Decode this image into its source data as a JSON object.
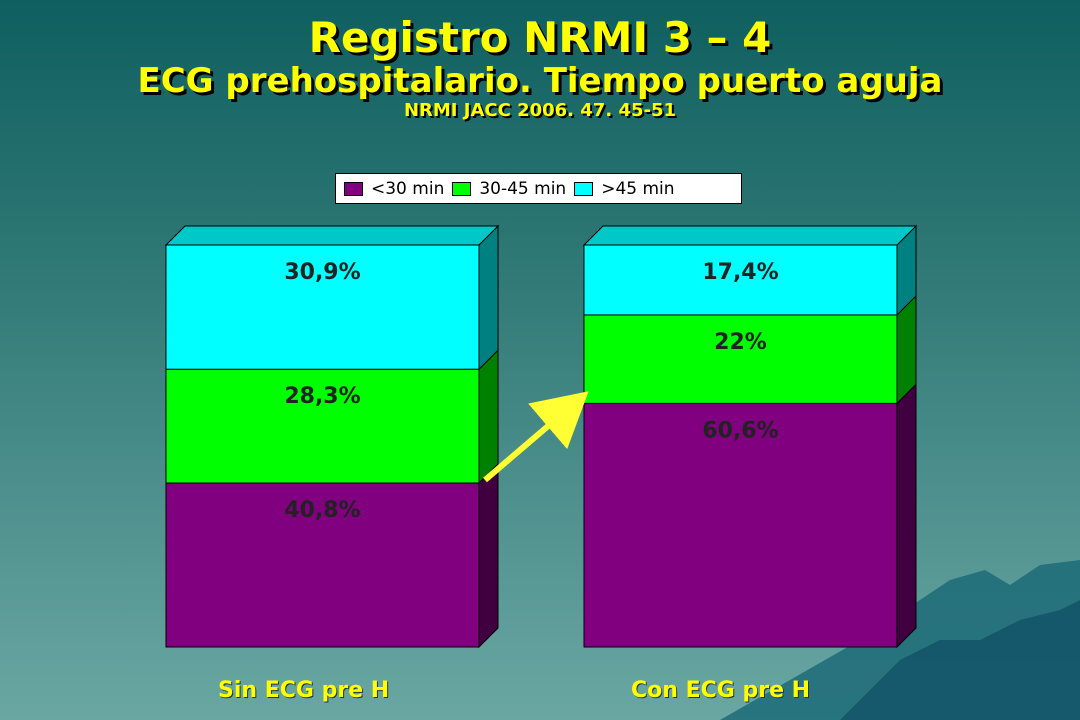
{
  "title": "Registro NRMI 3 – 4",
  "subtitle": "ECG prehospitalario. Tiempo puerto aguja",
  "source": "NRMI JACC 2006. 47. 45-51",
  "colors": {
    "lt30": "#800080",
    "lt30_side": "#400040",
    "mid": "#00ff00",
    "mid_side": "#008000",
    "gt45": "#00ffff",
    "gt45_side": "#008080",
    "label": "#ffff00",
    "arrow": "#ffff33"
  },
  "chart_data": {
    "type": "bar",
    "stacked": true,
    "three_d": true,
    "categories": [
      "Sin ECG pre H",
      "Con ECG pre H"
    ],
    "series": [
      {
        "name": "<30 min",
        "values": [
          40.8,
          60.6
        ],
        "labels": [
          "40,8%",
          "60,6%"
        ],
        "color": "#800080"
      },
      {
        "name": "30-45 min",
        "values": [
          28.3,
          22
        ],
        "labels": [
          "28,3%",
          "22%"
        ],
        "color": "#00ff00"
      },
      {
        "name": ">45 min",
        "values": [
          30.9,
          17.4
        ],
        "labels": [
          "30,9%",
          "17,4%"
        ],
        "color": "#00ffff"
      }
    ],
    "ylim": [
      0,
      100
    ],
    "legend": "top",
    "annotations": [
      "arrow from <30 min segment of Sin ECG pre H to Con ECG pre H"
    ]
  }
}
